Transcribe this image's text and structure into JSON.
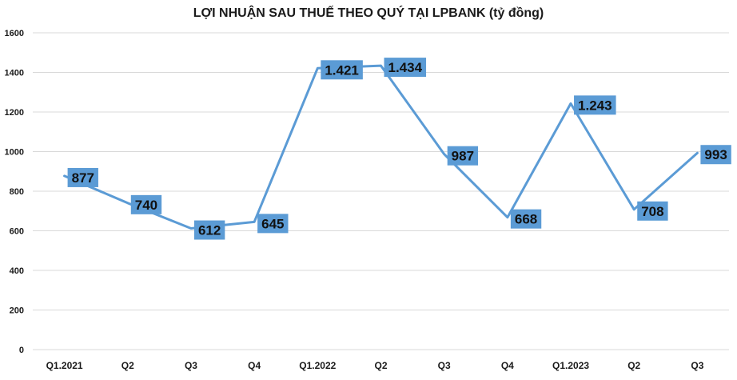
{
  "chart_data": {
    "type": "line",
    "title": "LỢI NHUẬN SAU THUẾ THEO QUÝ TẠI LPBANK (tỷ đồng)",
    "categories": [
      "Q1.2021",
      "Q2",
      "Q3",
      "Q4",
      "Q1.2022",
      "Q2",
      "Q3",
      "Q4",
      "Q1.2023",
      "Q2",
      "Q3"
    ],
    "series": [
      {
        "values": [
          877,
          740,
          612,
          645,
          1421,
          1434,
          987,
          668,
          1243,
          708,
          993
        ],
        "labels": [
          "877",
          "740",
          "612",
          "645",
          "1.421",
          "1.434",
          "987",
          "668",
          "1.243",
          "708",
          "993"
        ],
        "color": "#5b9bd5"
      }
    ],
    "ylim": [
      0,
      1600
    ],
    "yticks": [
      0,
      200,
      400,
      600,
      800,
      1000,
      1200,
      1400,
      1600
    ],
    "grid": true,
    "legend": "none",
    "label_box_color": "#5b9bd5"
  }
}
